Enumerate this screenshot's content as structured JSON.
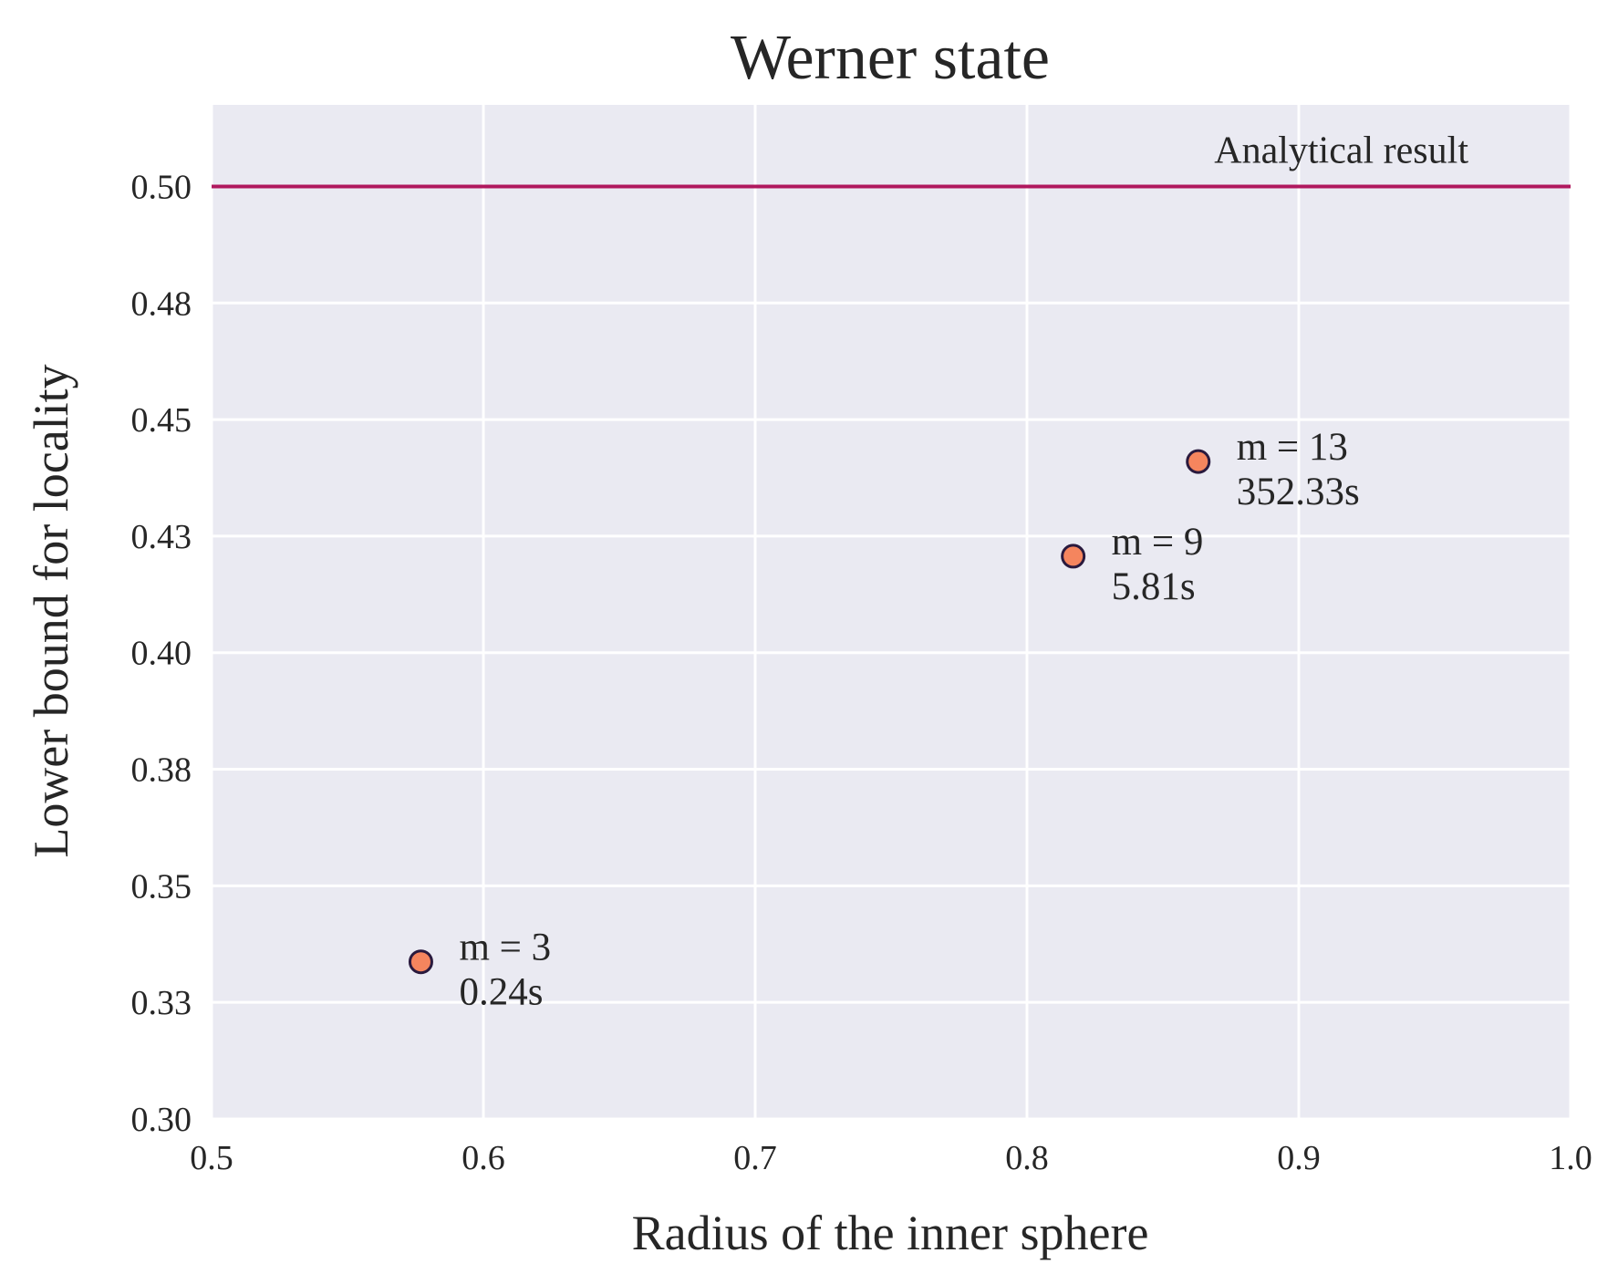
{
  "chart_data": {
    "type": "scatter",
    "title": "Werner state",
    "xlabel": "Radius of the inner sphere",
    "ylabel": "Lower bound for locality",
    "xlim": [
      0.5,
      1.0
    ],
    "ylim": [
      0.3,
      0.5175
    ],
    "xticks": [
      0.5,
      0.6,
      0.7,
      0.8,
      0.9,
      1.0
    ],
    "xtick_labels": [
      "0.5",
      "0.6",
      "0.7",
      "0.8",
      "0.9",
      "1.0"
    ],
    "yticks": [
      0.3,
      0.325,
      0.35,
      0.375,
      0.4,
      0.425,
      0.45,
      0.475,
      0.5
    ],
    "ytick_labels": [
      "0.30",
      "0.33",
      "0.35",
      "0.38",
      "0.40",
      "0.43",
      "0.45",
      "0.48",
      "0.50"
    ],
    "grid": true,
    "reference_line": {
      "y": 0.5,
      "label": "Analytical result",
      "color": "#b0185e"
    },
    "points": [
      {
        "x": 0.577,
        "y": 0.3337,
        "label_m": "m = 3",
        "label_time": "0.24s"
      },
      {
        "x": 0.817,
        "y": 0.4207,
        "label_m": "m = 9",
        "label_time": "5.81s"
      },
      {
        "x": 0.863,
        "y": 0.441,
        "label_m": "m = 13",
        "label_time": "352.33s"
      }
    ],
    "colors": {
      "background": "#eaeaf2",
      "grid": "#ffffff",
      "marker_fill": "#f5855e",
      "marker_edge": "#2a1a3e"
    }
  }
}
